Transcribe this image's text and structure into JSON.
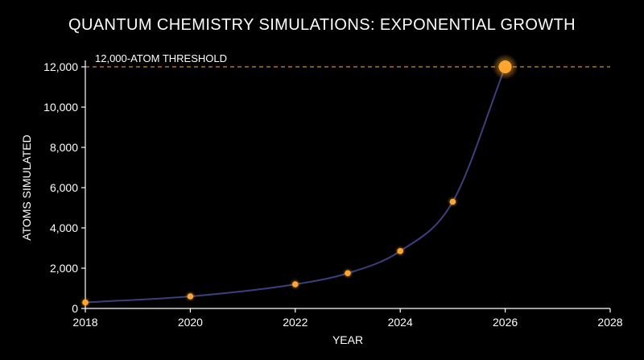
{
  "chart_data": {
    "type": "scatter",
    "title": "QUANTUM CHEMISTRY SIMULATIONS: EXPONENTIAL GROWTH",
    "xlabel": "YEAR",
    "ylabel": "ATOMS SIMULATED",
    "xlim": [
      2018,
      2028
    ],
    "ylim": [
      0,
      12500
    ],
    "x_ticks": [
      2018,
      2020,
      2022,
      2024,
      2026,
      2028
    ],
    "x_tick_labels": [
      "2018",
      "2020",
      "2022",
      "2024",
      "2026",
      "2028"
    ],
    "y_ticks": [
      0,
      2000,
      4000,
      6000,
      8000,
      10000,
      12000
    ],
    "y_tick_labels": [
      "0",
      "2,000",
      "4,000",
      "6,000",
      "8,000",
      "10,000",
      "12,000"
    ],
    "grid": false,
    "series": [
      {
        "x": [
          2018,
          2020,
          2022,
          2023,
          2024,
          2025,
          2026
        ],
        "y": [
          300,
          600,
          1200,
          1750,
          2850,
          5300,
          12000
        ],
        "highlight": [
          false,
          false,
          false,
          false,
          false,
          false,
          true
        ]
      }
    ],
    "threshold": {
      "value": 12000,
      "label": "12,000-ATOM THRESHOLD"
    },
    "colors": {
      "background": "#000000",
      "text": "#ffffff",
      "points": "#ffa630",
      "point_glow": "#ffb84d",
      "curve": "#3b3f7a",
      "threshold_line": "#c98a3c",
      "axis": "#ffffff"
    }
  }
}
